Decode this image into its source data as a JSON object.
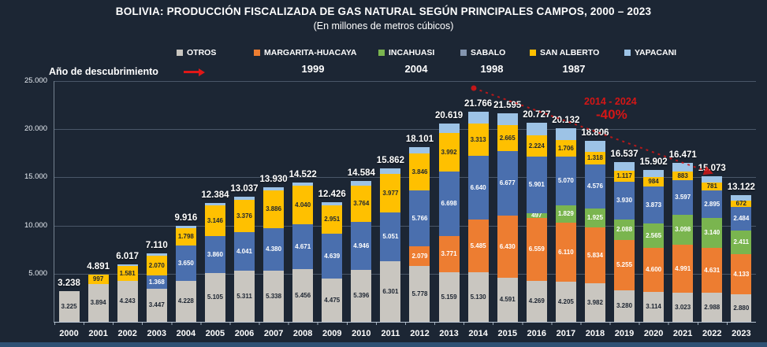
{
  "page": {
    "background_color": "#1c2634",
    "bottom_strip_color": "#2f5174"
  },
  "chart_data": {
    "type": "bar",
    "stacked": true,
    "title": "BOLIVIA: PRODUCCIÓN FISCALIZADA DE GAS NATURAL SEGÚN PRINCIPALES CAMPOS, 2000 – 2023",
    "subtitle": "(En millones de metros cúbicos)",
    "discovery_label": "Año de descubrimiento",
    "legend_position": "top",
    "grid": true,
    "ylim": [
      0,
      25000
    ],
    "y_ticks": [
      5000,
      10000,
      15000,
      20000,
      25000
    ],
    "y_tick_labels": [
      "5.000",
      "10.000",
      "15.000",
      "20.000",
      "25.000"
    ],
    "categories": [
      2000,
      2001,
      2002,
      2003,
      2004,
      2005,
      2006,
      2007,
      2008,
      2009,
      2010,
      2011,
      2012,
      2013,
      2014,
      2015,
      2016,
      2017,
      2018,
      2019,
      2020,
      2021,
      2022,
      2023
    ],
    "totals": [
      3238,
      4891,
      6017,
      7110,
      9916,
      12384,
      13037,
      13930,
      14522,
      12426,
      14584,
      15862,
      18101,
      20619,
      21766,
      21595,
      20727,
      20132,
      18806,
      16537,
      15902,
      16471,
      15073,
      13122
    ],
    "series": [
      {
        "name": "OTROS",
        "discovery_year": "",
        "color": "#c9c6c0",
        "label_text_color": "#1d2531",
        "labels_shown": true,
        "values": [
          3225,
          3894,
          4243,
          3447,
          4228,
          5105,
          5311,
          5338,
          5456,
          4475,
          5396,
          6301,
          5778,
          5159,
          5130,
          4591,
          4269,
          4205,
          3982,
          3280,
          3114,
          3023,
          2988,
          2880
        ]
      },
      {
        "name": "MARGARITA-HUACAYA",
        "discovery_year": "1999",
        "color": "#ed7d31",
        "label_text_color": "#ffffff",
        "labels_shown": true,
        "values": [
          0,
          0,
          0,
          0,
          0,
          0,
          0,
          0,
          0,
          0,
          0,
          0,
          2079,
          3771,
          5485,
          6430,
          6559,
          6110,
          5834,
          5255,
          4600,
          4991,
          4631,
          4133
        ]
      },
      {
        "name": "INCAHUASI",
        "discovery_year": "2004",
        "color": "#7ab54f",
        "label_text_color": "#ffffff",
        "labels_shown": true,
        "values": [
          0,
          0,
          0,
          0,
          0,
          0,
          0,
          0,
          0,
          0,
          0,
          0,
          0,
          0,
          0,
          0,
          497,
          1829,
          1925,
          2088,
          2565,
          3098,
          3140,
          2411
        ]
      },
      {
        "name": "SABALO",
        "discovery_year": "1998",
        "color": "#4a6fae",
        "legend_color": "#8496b0",
        "label_text_color": "#ffffff",
        "labels_shown": true,
        "values": [
          0,
          0,
          0,
          1368,
          3650,
          3860,
          4041,
          4380,
          4671,
          4639,
          4946,
          5051,
          5766,
          6698,
          6640,
          6677,
          5901,
          5070,
          4576,
          3930,
          3873,
          3597,
          2895,
          2484
        ]
      },
      {
        "name": "SAN ALBERTO",
        "discovery_year": "1987",
        "color": "#ffc000",
        "label_text_color": "#1d2531",
        "labels_shown": true,
        "values": [
          0,
          997,
          1581,
          2070,
          1798,
          3146,
          3376,
          3886,
          4040,
          2951,
          3764,
          3977,
          3846,
          3992,
          3313,
          2665,
          2224,
          1706,
          1318,
          1117,
          984,
          883,
          781,
          672
        ]
      },
      {
        "name": "YAPACANI",
        "discovery_year": "",
        "color": "#9dc3e6",
        "label_text_color": "#ffffff",
        "labels_shown": false,
        "values_estimated_from_remainder": true,
        "values": [
          13,
          0,
          193,
          225,
          240,
          273,
          309,
          326,
          355,
          361,
          478,
          533,
          632,
          999,
          1198,
          1232,
          1277,
          1212,
          1171,
          867,
          766,
          879,
          638,
          542
        ]
      }
    ],
    "annotation": {
      "period": "2014 - 2024",
      "change": "-40%",
      "color": "#d31616",
      "style": "dashed red declining arrow from 2014 peak to 2023"
    }
  }
}
